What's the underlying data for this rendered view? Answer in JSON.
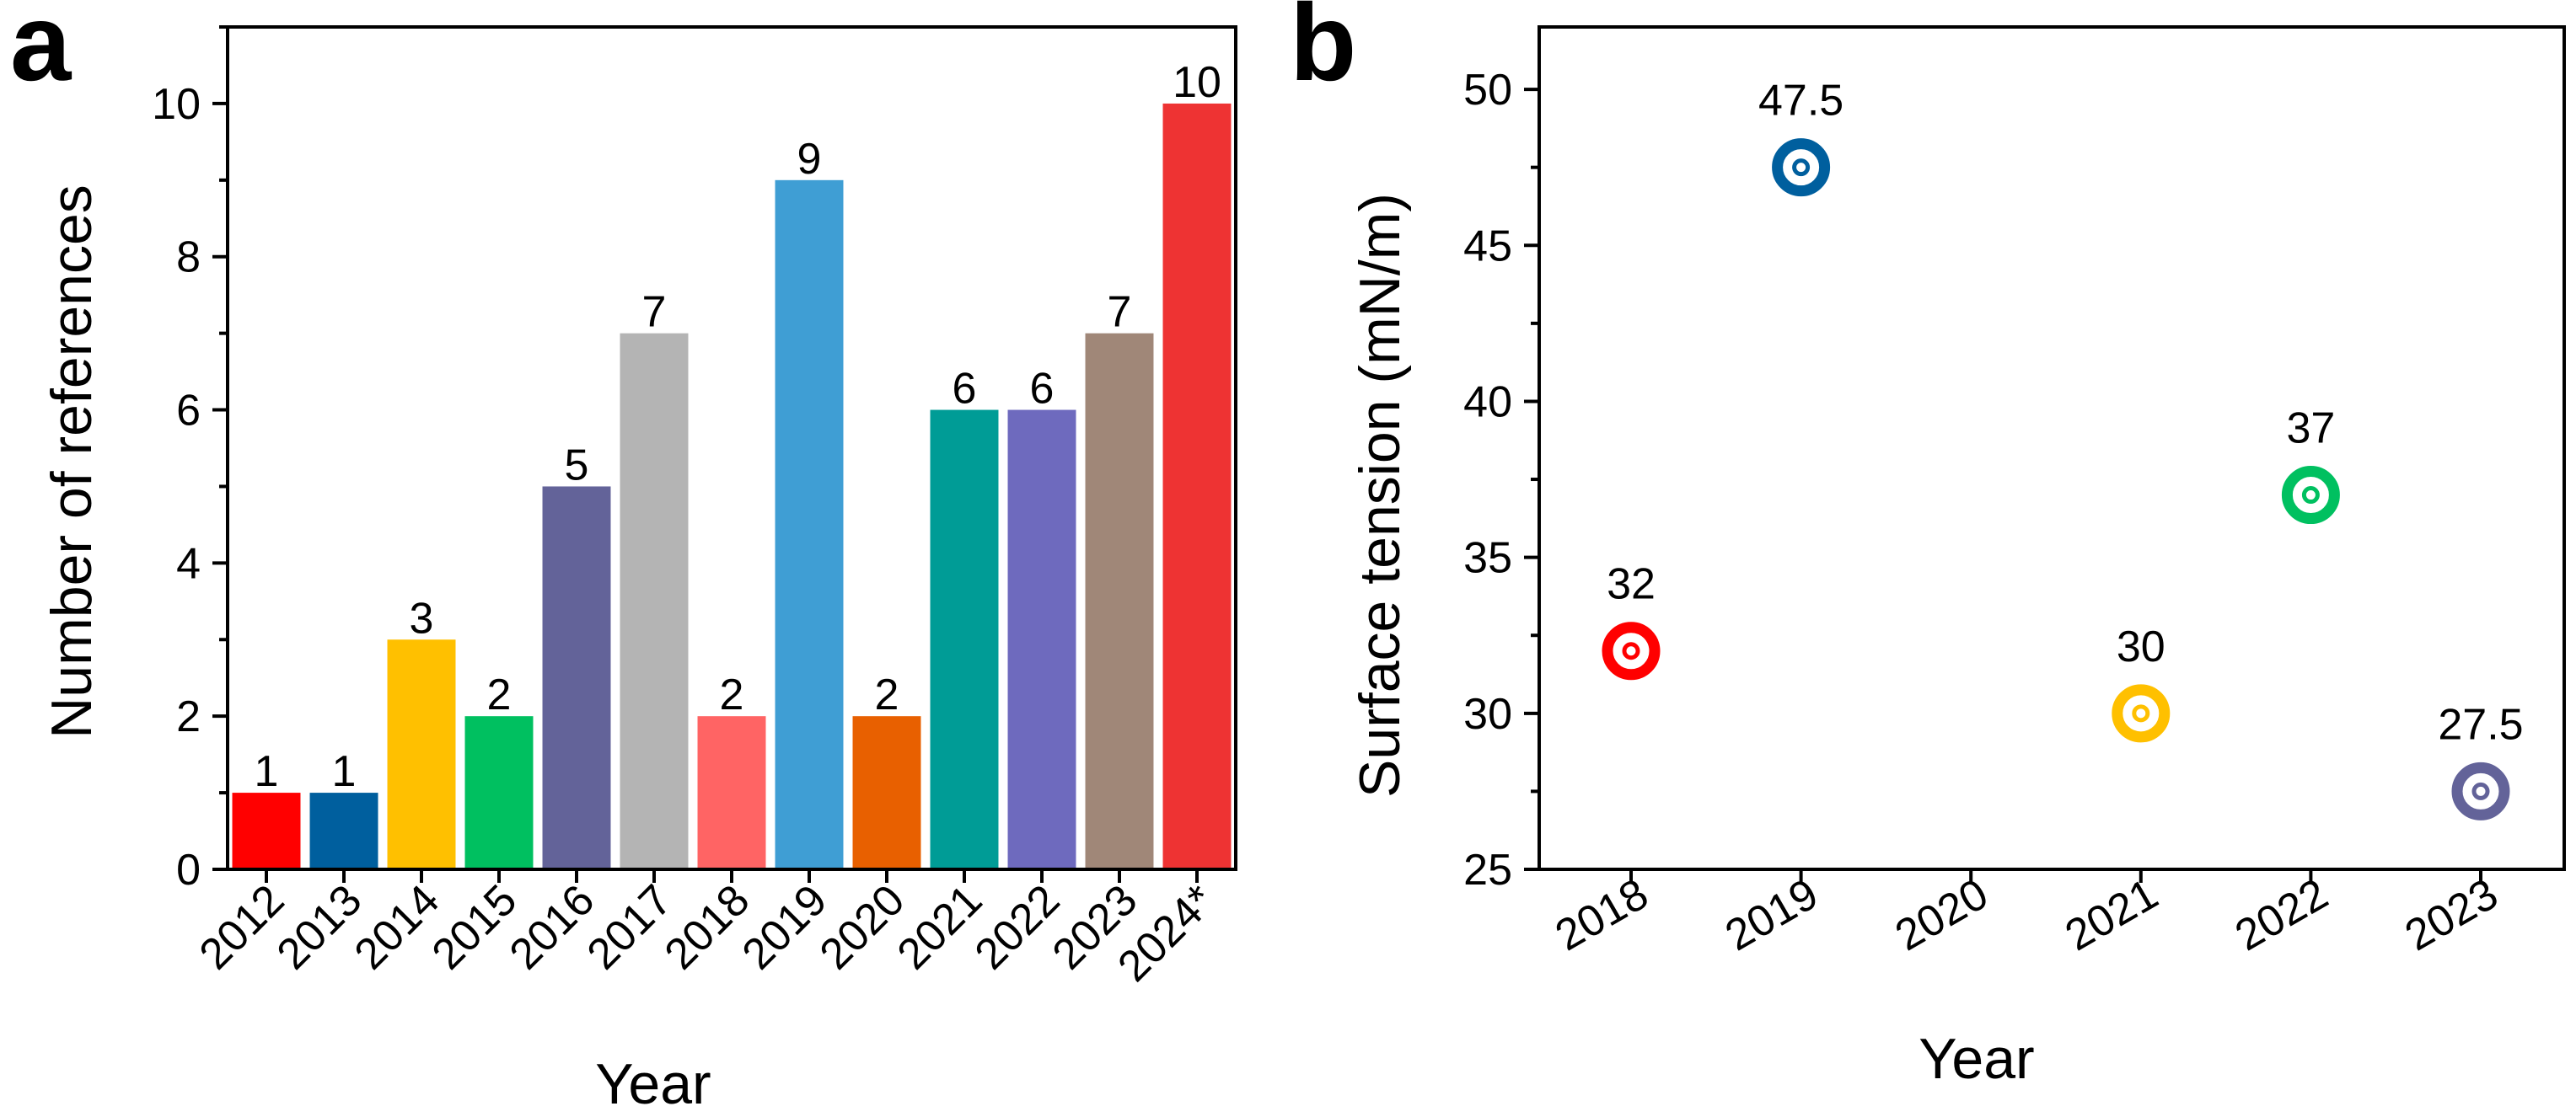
{
  "chart_data": [
    {
      "panel": "a",
      "type": "bar",
      "title": "",
      "xlabel": "Year",
      "ylabel": "Number of references",
      "ylim": [
        0,
        11
      ],
      "yticks": [
        0,
        2,
        4,
        6,
        8,
        10
      ],
      "categories": [
        "2012",
        "2013",
        "2014",
        "2015",
        "2016",
        "2017",
        "2018",
        "2019",
        "2020",
        "2021",
        "2022",
        "2023",
        "2024*"
      ],
      "values": [
        1,
        1,
        3,
        2,
        5,
        7,
        2,
        9,
        2,
        6,
        6,
        7,
        10
      ],
      "colors": [
        "#ff0000",
        "#005f9e",
        "#ffc000",
        "#00c060",
        "#636399",
        "#b4b4b4",
        "#ff6464",
        "#3f9ed4",
        "#e86000",
        "#009c96",
        "#6e6abe",
        "#a08778",
        "#ee3333"
      ],
      "grid": false
    },
    {
      "panel": "b",
      "type": "scatter",
      "title": "",
      "xlabel": "Year",
      "ylabel": "Surface tension (mN/m)",
      "ylim": [
        25,
        52
      ],
      "yticks": [
        25,
        30,
        35,
        40,
        45,
        50
      ],
      "categories": [
        "2018",
        "2019",
        "2020",
        "2021",
        "2022",
        "2023"
      ],
      "points": [
        {
          "x": "2018",
          "y": 32,
          "label": "32",
          "color": "#ff0000"
        },
        {
          "x": "2019",
          "y": 47.5,
          "label": "47.5",
          "color": "#005f9e"
        },
        {
          "x": "2021",
          "y": 30,
          "label": "30",
          "color": "#ffc000"
        },
        {
          "x": "2022",
          "y": 37,
          "label": "37",
          "color": "#00c060"
        },
        {
          "x": "2023",
          "y": 27.5,
          "label": "27.5",
          "color": "#636399"
        }
      ],
      "grid": false
    }
  ]
}
